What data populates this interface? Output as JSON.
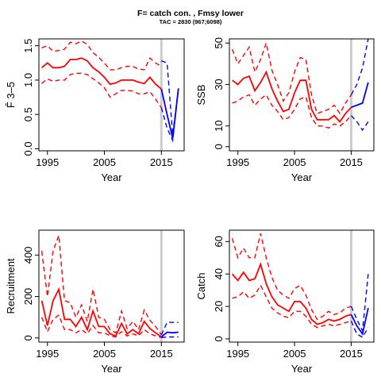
{
  "figure": {
    "title": "F= catch con. , Fmsy lower",
    "subtitle": "TAC = 2830 (967;6098)"
  },
  "colors": {
    "historical": "#ff0000",
    "forecast": "#0000ff",
    "divider": "#cccccc",
    "axis": "#000000"
  },
  "chart_data": [
    {
      "type": "line",
      "ylabel": "F̄ 3–5",
      "xlabel": "Year",
      "xlim": [
        1993.5,
        2019
      ],
      "ylim": [
        -0.03,
        1.6
      ],
      "xticks": [
        1995,
        2005,
        2015
      ],
      "yticks": [
        0.0,
        0.5,
        1.0,
        1.5
      ],
      "ytick_labels": [
        "0.0",
        "0.5",
        "1.0",
        "1.5"
      ],
      "vline": 2015,
      "historical": {
        "x": [
          1994,
          1995,
          1996,
          1997,
          1998,
          1999,
          2000,
          2001,
          2002,
          2003,
          2004,
          2005,
          2006,
          2007,
          2008,
          2009,
          2010,
          2011,
          2012,
          2013,
          2014,
          2015
        ],
        "median": [
          1.18,
          1.25,
          1.18,
          1.18,
          1.2,
          1.3,
          1.3,
          1.32,
          1.28,
          1.18,
          1.12,
          1.04,
          0.94,
          0.96,
          1.0,
          1.0,
          1.0,
          0.97,
          0.95,
          1.04,
          0.94,
          0.87
        ],
        "upper": [
          1.47,
          1.5,
          1.42,
          1.43,
          1.45,
          1.55,
          1.53,
          1.57,
          1.52,
          1.4,
          1.33,
          1.25,
          1.15,
          1.15,
          1.18,
          1.2,
          1.2,
          1.16,
          1.15,
          1.32,
          1.25,
          1.2
        ],
        "lower": [
          0.95,
          1.02,
          0.98,
          1.0,
          1.0,
          1.08,
          1.1,
          1.1,
          1.08,
          1.02,
          0.96,
          0.89,
          0.75,
          0.8,
          0.85,
          0.85,
          0.84,
          0.8,
          0.8,
          0.83,
          0.72,
          0.6
        ]
      },
      "forecast": {
        "x": [
          2015,
          2016,
          2017,
          2018
        ],
        "median": [
          0.87,
          0.5,
          0.15,
          0.88
        ],
        "upper": [
          1.28,
          1.25,
          0.2,
          0.88
        ],
        "lower": [
          0.6,
          0.3,
          0.12,
          0.88
        ]
      }
    },
    {
      "type": "line",
      "ylabel": "SSB",
      "xlabel": "Year",
      "xlim": [
        1993.5,
        2019
      ],
      "ylim": [
        -2,
        52
      ],
      "xticks": [
        1995,
        2005,
        2015
      ],
      "yticks": [
        0,
        10,
        30,
        50
      ],
      "ytick_labels": [
        "0",
        "10",
        "30",
        "50"
      ],
      "vline": 2015,
      "historical": {
        "x": [
          1994,
          1995,
          1996,
          1997,
          1998,
          1999,
          2000,
          2001,
          2002,
          2003,
          2004,
          2005,
          2006,
          2007,
          2008,
          2009,
          2010,
          2011,
          2012,
          2013,
          2014,
          2015
        ],
        "median": [
          32,
          30,
          33,
          34,
          27,
          31,
          36,
          28,
          22,
          17,
          18,
          26,
          32,
          32,
          18,
          13,
          13,
          13,
          15,
          12,
          16,
          19
        ],
        "upper": [
          47,
          40,
          44,
          48,
          36,
          42,
          50,
          37,
          30,
          22,
          26,
          36,
          43,
          42,
          25,
          16,
          17,
          18,
          20,
          16,
          21,
          25
        ],
        "lower": [
          21,
          22,
          24,
          25,
          20,
          23,
          25,
          20,
          17,
          13,
          14,
          18,
          23,
          24,
          14,
          10,
          10,
          9,
          11,
          10,
          12,
          15
        ]
      },
      "forecast": {
        "x": [
          2015,
          2016,
          2017,
          2018
        ],
        "median": [
          19,
          20,
          21,
          31
        ],
        "upper": [
          25,
          30,
          38,
          52
        ],
        "lower": [
          15,
          12,
          8,
          12
        ]
      }
    },
    {
      "type": "line",
      "ylabel": "Recruitment",
      "xlabel": "Year",
      "xlim": [
        1993.5,
        2019
      ],
      "ylim": [
        -20,
        520
      ],
      "xticks": [
        1995,
        2005,
        2015
      ],
      "yticks": [
        0,
        200,
        400
      ],
      "ytick_labels": [
        "0",
        "200",
        "400"
      ],
      "vline": 2015,
      "historical": {
        "x": [
          1994,
          1995,
          1996,
          1997,
          1998,
          1999,
          2000,
          2001,
          2002,
          2003,
          2004,
          2005,
          2006,
          2007,
          2008,
          2009,
          2010,
          2011,
          2012,
          2013,
          2014,
          2015
        ],
        "median": [
          180,
          60,
          180,
          235,
          90,
          90,
          55,
          100,
          40,
          130,
          55,
          55,
          20,
          10,
          70,
          20,
          40,
          20,
          80,
          45,
          25,
          5
        ],
        "upper": [
          420,
          200,
          420,
          495,
          180,
          170,
          100,
          160,
          80,
          235,
          100,
          90,
          40,
          25,
          130,
          45,
          80,
          40,
          135,
          85,
          55,
          15
        ],
        "lower": [
          100,
          30,
          90,
          110,
          40,
          40,
          25,
          40,
          20,
          60,
          25,
          25,
          10,
          5,
          30,
          10,
          20,
          10,
          40,
          20,
          10,
          2
        ]
      },
      "forecast": {
        "x": [
          2015,
          2016,
          2017,
          2018
        ],
        "median": [
          5,
          28,
          25,
          28
        ],
        "upper": [
          15,
          75,
          75,
          75
        ],
        "lower": [
          2,
          5,
          5,
          5
        ]
      }
    },
    {
      "type": "line",
      "ylabel": "Catch",
      "xlabel": "Year",
      "xlim": [
        1993.5,
        2019
      ],
      "ylim": [
        -2,
        67
      ],
      "xticks": [
        1995,
        2005,
        2015
      ],
      "yticks": [
        0,
        20,
        40,
        60
      ],
      "ytick_labels": [
        "0",
        "20",
        "40",
        "60"
      ],
      "vline": 2015,
      "historical": {
        "x": [
          1994,
          1995,
          1996,
          1997,
          1998,
          1999,
          2000,
          2001,
          2002,
          2003,
          2004,
          2005,
          2006,
          2007,
          2008,
          2009,
          2010,
          2011,
          2012,
          2013,
          2014,
          2015
        ],
        "median": [
          40,
          36,
          41,
          36,
          37,
          46,
          34,
          26,
          21,
          19,
          17,
          23,
          23,
          19,
          12,
          9,
          10,
          12,
          11,
          12,
          14,
          15
        ],
        "upper": [
          62,
          50,
          56,
          50,
          50,
          65,
          50,
          38,
          30,
          27,
          25,
          31,
          33,
          27,
          18,
          12,
          14,
          17,
          15,
          16,
          19,
          20
        ],
        "lower": [
          25,
          26,
          29,
          25,
          27,
          33,
          26,
          19,
          16,
          14,
          13,
          17,
          17,
          14,
          9,
          7,
          8,
          9,
          8,
          9,
          10,
          11
        ]
      },
      "forecast": {
        "x": [
          2015,
          2016,
          2017,
          2018
        ],
        "median": [
          15,
          8,
          3,
          19
        ],
        "upper": [
          20,
          12,
          5,
          40
        ],
        "lower": [
          11,
          3,
          1,
          7
        ]
      }
    }
  ]
}
